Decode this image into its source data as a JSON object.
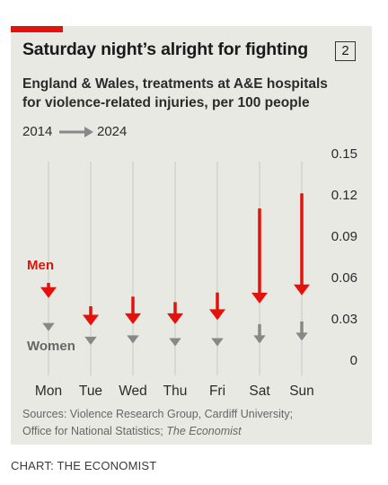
{
  "title": "Saturday night’s alright for fighting",
  "badge": "2",
  "subtitle_line1": "England & Wales, treatments at A&E hospitals",
  "subtitle_line2": "for violence-related injuries, per 100 people",
  "legend": {
    "from": "2014",
    "to": "2024"
  },
  "source_line1": "Sources: Violence Research Group, Cardiff University;",
  "source_line2_a": "Office for National Statistics; ",
  "source_line2_b": "The Economist",
  "credit": "CHART: THE ECONOMIST",
  "colors": {
    "men": "#e3120b",
    "women": "#888888",
    "accent": "#e3120b"
  },
  "chart_data": {
    "type": "arrow",
    "categories": [
      "Mon",
      "Tue",
      "Wed",
      "Thu",
      "Fri",
      "Sat",
      "Sun"
    ],
    "y_ticks": [
      "0",
      "0.03",
      "0.06",
      "0.09",
      "0.12",
      "0.15"
    ],
    "ylim": [
      0,
      0.15
    ],
    "y_axis_side": "right",
    "grid": "vertical",
    "series": [
      {
        "name": "Men",
        "from_2014": [
          0.062,
          0.045,
          0.052,
          0.048,
          0.055,
          0.116,
          0.127
        ],
        "to_2024": [
          0.051,
          0.031,
          0.032,
          0.032,
          0.035,
          0.047,
          0.053
        ]
      },
      {
        "name": "Women",
        "from_2014": [
          0.029,
          0.019,
          0.022,
          0.021,
          0.02,
          0.032,
          0.034
        ],
        "to_2024": [
          0.027,
          0.017,
          0.018,
          0.016,
          0.016,
          0.018,
          0.02
        ]
      }
    ]
  }
}
